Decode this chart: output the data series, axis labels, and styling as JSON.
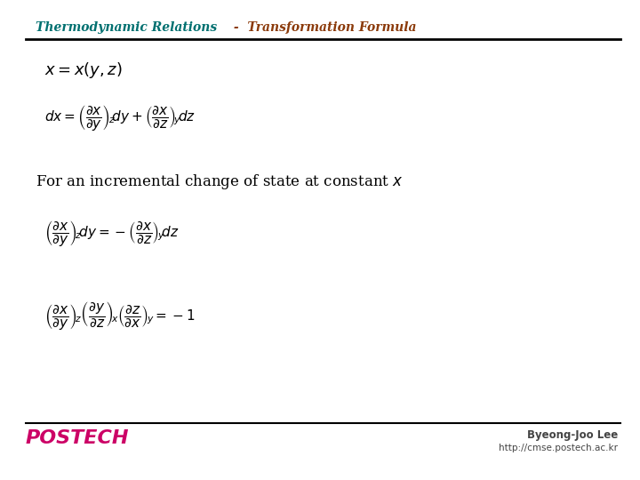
{
  "title_part1": "Thermodynamic Relations",
  "title_part2": " -  Transformation Formula",
  "title_color1": "#007070",
  "title_color2": "#8B3A0A",
  "bg_color": "#FFFFFF",
  "line_color": "#000000",
  "text_color": "#000000",
  "footer_author": "Byeong-Joo Lee",
  "footer_url": "http://cmse.postech.ac.kr",
  "postech_color": "#CC0066"
}
